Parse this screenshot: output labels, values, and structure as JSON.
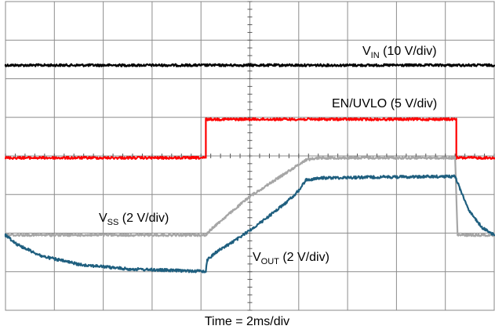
{
  "chart_data": {
    "type": "line",
    "title": "",
    "xlabel": "Time = 2ms/div",
    "time_per_div_ms": 2,
    "xlim_ms": [
      0,
      20
    ],
    "grid": true,
    "grid_divisions": {
      "x": 10,
      "y": 8
    },
    "series": [
      {
        "name": "VIN (10 V/div)",
        "label_main": "V",
        "label_sub": "IN",
        "label_rest": " (10 V/div)",
        "color": "#000000",
        "baseline_div": 6.35,
        "t_ms": [
          0,
          20
        ],
        "level_div": [
          0,
          0
        ],
        "noise_div": 0.03
      },
      {
        "name": "EN/UVLO (5 V/div)",
        "label_main": "EN/UVLO (5 V/div)",
        "label_sub": "",
        "label_rest": "",
        "color": "#ff0000",
        "baseline_div": 3.95,
        "t_ms": [
          0,
          8.2,
          8.2,
          18.45,
          18.45,
          20
        ],
        "level_div": [
          0,
          0,
          1.0,
          1.0,
          0,
          0
        ],
        "noise_div": 0.03
      },
      {
        "name": "VSS (2 V/div)",
        "label_main": "V",
        "label_sub": "SS",
        "label_rest": " (2 V/div)",
        "color": "#a6a6a6",
        "baseline_div": 1.95,
        "t_ms": [
          0,
          8.2,
          8.5,
          10.0,
          12.3,
          12.8,
          18.4,
          18.5,
          20
        ],
        "level_div": [
          0,
          0,
          0.2,
          1.0,
          1.95,
          2.0,
          2.0,
          0,
          0
        ],
        "noise_div": 0.03
      },
      {
        "name": "VOUT (2 V/div)",
        "label_main": "V",
        "label_sub": "OUT",
        "label_rest": " (2 V/div)",
        "color": "#1f5f7f",
        "baseline_div": 1.95,
        "t_ms": [
          0,
          0.5,
          1.5,
          3.0,
          5.0,
          7.0,
          8.2,
          8.25,
          8.6,
          9.5,
          10.5,
          11.5,
          12.0,
          12.3,
          13,
          15,
          18.4,
          18.6,
          19,
          19.5,
          20
        ],
        "level_div": [
          0,
          -0.25,
          -0.55,
          -0.76,
          -0.88,
          -0.92,
          -0.94,
          -0.65,
          -0.45,
          -0.1,
          0.35,
          0.85,
          1.15,
          1.43,
          1.48,
          1.5,
          1.52,
          1.2,
          0.6,
          0.2,
          0.0
        ],
        "noise_div": 0.035
      }
    ]
  }
}
